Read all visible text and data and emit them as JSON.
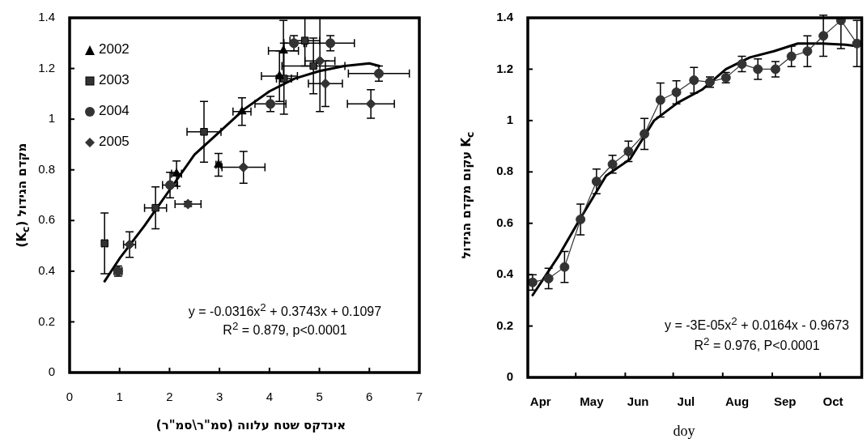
{
  "chart_data": [
    {
      "type": "scatter",
      "xlabel": "אינדקס שטח עלווה (סמ\"ר\\סמ\"ר)",
      "ylabel": "מקדם הגידול (K$_{c}$)",
      "xlim": [
        0,
        7
      ],
      "xticks": [
        0,
        1,
        2,
        3,
        4,
        5,
        6,
        7
      ],
      "ylim": [
        0,
        1.4
      ],
      "yticks": [
        0,
        0.2,
        0.4,
        0.6,
        0.8,
        1,
        1.2,
        1.4
      ],
      "legend": "top left",
      "annotations": [
        "y = -0.0316x$^{2}$ + 0.3743x + 0.1097",
        "R$^{2}$ = 0.879, p<0.0001"
      ],
      "series": [
        {
          "name": "2002",
          "type": "scatter",
          "marker": "triangle",
          "color": "#000000",
          "x": [
            4.28,
            4.2,
            3.45,
            2.98,
            2.14
          ],
          "values": [
            1.27,
            1.17,
            1.03,
            0.82,
            0.785
          ],
          "errors": [
            0.12,
            0.1,
            0.054,
            0.045,
            0.05
          ],
          "xerrors": [
            0.3,
            0.36,
            0.18,
            0.05,
            0.1
          ]
        },
        {
          "name": "2003",
          "type": "scatter",
          "marker": "square",
          "color": "#333333",
          "x": [
            4.71,
            4.88,
            4.29,
            2.69,
            1.72,
            0.7
          ],
          "values": [
            1.31,
            1.21,
            1.16,
            0.95,
            0.65,
            0.51
          ],
          "errors": [
            [
              1.21,
              1.4
            ],
            0.11,
            0.14,
            0.12,
            0.083,
            0.12
          ],
          "xerrors": [
            0.3,
            0.63,
            0.15,
            0.34,
            0.22,
            0.05
          ]
        },
        {
          "name": "2004",
          "type": "scatter",
          "marker": "circle",
          "color": "#333333",
          "x": [
            4.49,
            5.22,
            6.19,
            4.02,
            2.01,
            0.97
          ],
          "values": [
            1.3,
            1.3,
            1.18,
            1.06,
            0.74,
            0.4
          ],
          "errors": [
            0.03,
            0.03,
            0.03,
            0.03,
            0.05,
            0.02
          ],
          "xerrors": [
            0.2,
            0.48,
            0.61,
            0.31,
            0.15,
            0.08
          ]
        },
        {
          "name": "2005",
          "type": "scatter",
          "marker": "diamond",
          "color": "#333333",
          "x": [
            5.01,
            5.12,
            6.03,
            3.48,
            2.37,
            1.2
          ],
          "values": [
            1.23,
            1.14,
            1.06,
            0.81,
            0.665,
            0.505
          ],
          "errors": [
            [
              1.03,
              1.4
            ],
            0.09,
            0.056,
            0.063,
            0.01,
            0.05
          ],
          "xerrors": [
            0.3,
            0.34,
            0.47,
            0.43,
            0.26,
            0.12
          ]
        },
        {
          "type": "line",
          "marker": "none",
          "color": "#000000",
          "x": [
            0.7,
            1,
            1.5,
            2,
            2.5,
            3,
            3.5,
            4,
            4.5,
            5,
            5.5,
            6,
            6.2
          ],
          "values": [
            0.36,
            0.45,
            0.58,
            0.72,
            0.86,
            0.95,
            1.04,
            1.11,
            1.16,
            1.19,
            1.21,
            1.22,
            1.21
          ]
        }
      ]
    },
    {
      "type": "scatter",
      "xlabel": "doy",
      "ylabel": "K$_{c}$ עקום מקדם הגידול",
      "xlim": [
        "--04-01",
        "--10-27"
      ],
      "xticks": [
        {
          "value": "--04-09",
          "label": "Apr"
        },
        {
          "value": "--05-01",
          "label": null
        },
        {
          "value": "--05-11",
          "label": "May"
        },
        {
          "value": "--06-01",
          "label": null
        },
        {
          "value": "--06-09",
          "label": "Jun"
        },
        {
          "value": "--07-01",
          "label": null
        },
        {
          "value": "--07-09",
          "label": "Jul"
        },
        {
          "value": "--08-01",
          "label": null
        },
        {
          "value": "--08-10",
          "label": "Aug"
        },
        {
          "value": "--09-01",
          "label": null
        },
        {
          "value": "--09-09",
          "label": "Sep"
        },
        {
          "value": "--10-01",
          "label": null
        },
        {
          "value": "--10-09",
          "label": "Oct"
        }
      ],
      "ylim": [
        0,
        1.4
      ],
      "yticks": [
        0,
        0.2,
        0.4,
        0.6,
        0.8,
        1,
        1.2,
        1.4
      ],
      "annotations": [
        "y = -3E-05x$^{2}$ + 0.0164x - 0.9673",
        "R$^{2}$ = 0.976, P<0.0001"
      ],
      "series": [
        {
          "type": "line",
          "marker": "circle",
          "color": "#333333",
          "x": [
            "--04-04",
            "--04-14",
            "--04-24",
            "--05-04",
            "--05-14",
            "--05-24",
            "--06-03",
            "--06-13",
            "--06-23",
            "--07-03",
            "--07-14",
            "--07-24",
            "--08-03",
            "--08-13",
            "--08-23",
            "--09-03",
            "--09-13",
            "--09-23",
            "--10-03",
            "--10-14",
            "--10-24"
          ],
          "values": [
            0.37,
            0.385,
            0.43,
            0.615,
            0.763,
            0.83,
            0.88,
            0.948,
            1.08,
            1.11,
            1.157,
            1.15,
            1.167,
            1.22,
            1.2,
            1.2,
            1.25,
            1.27,
            1.33,
            1.39,
            1.3
          ],
          "errors": [
            0.03,
            0.04,
            0.06,
            0.06,
            0.048,
            0.035,
            0.04,
            0.06,
            0.066,
            0.045,
            0.05,
            0.02,
            0.02,
            0.03,
            0.04,
            0.03,
            0.04,
            0.06,
            0.08,
            [
              1.28,
              1.4
            ],
            [
              1.21,
              1.39
            ]
          ]
        },
        {
          "type": "line",
          "marker": "none",
          "color": "#000000",
          "x": [
            "--04-04",
            "--04-20",
            "--05-04",
            "--05-20",
            "--06-04",
            "--06-19",
            "--07-04",
            "--07-19",
            "--08-03",
            "--08-18",
            "--09-02",
            "--09-17",
            "--10-02",
            "--10-17",
            "--10-24"
          ],
          "values": [
            0.32,
            0.47,
            0.62,
            0.785,
            0.85,
            1.0,
            1.07,
            1.12,
            1.2,
            1.246,
            1.27,
            1.3,
            1.3,
            1.295,
            1.29
          ]
        }
      ]
    }
  ]
}
